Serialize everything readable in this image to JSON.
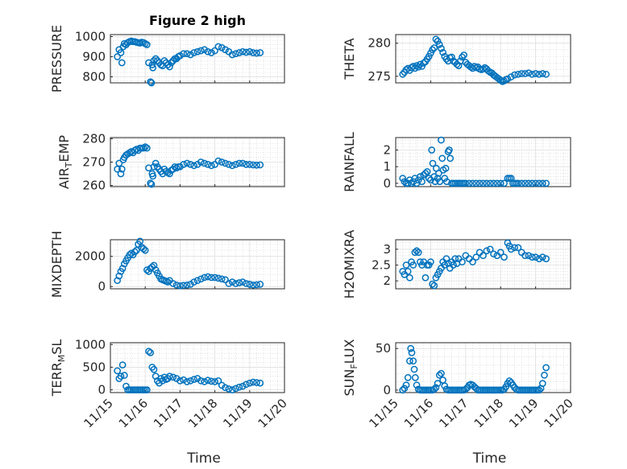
{
  "figure": {
    "background": "#ffffff",
    "marker_color": "#0072bd"
  },
  "chart_data": [
    {
      "type": "scatter",
      "title": "Figure 2 high",
      "ylabel": "PRESSURE",
      "ylabel_sub": "",
      "ylim": [
        770,
        1010
      ],
      "yticks": [
        800,
        900,
        1000
      ],
      "yticklabels": [
        "800",
        "900",
        "1000"
      ],
      "xlim": [
        15.0,
        20.0
      ],
      "xticks": [
        15,
        16,
        17,
        18,
        19,
        20
      ],
      "xticklabels": [
        "11/15",
        "11/16",
        "11/17",
        "11/18",
        "11/19",
        "11/20"
      ],
      "show_xticklabels": false,
      "xlabel": "",
      "x": [
        15.2,
        15.25,
        15.3,
        15.33,
        15.37,
        15.4,
        15.45,
        15.5,
        15.55,
        15.6,
        15.65,
        15.7,
        15.75,
        15.8,
        15.85,
        15.9,
        15.95,
        16.0,
        16.05,
        16.1,
        16.15,
        16.18,
        16.2,
        16.22,
        16.25,
        16.3,
        16.35,
        16.4,
        16.45,
        16.5,
        16.55,
        16.6,
        16.65,
        16.7,
        16.75,
        16.8,
        16.85,
        16.9,
        16.95,
        17.0,
        17.1,
        17.2,
        17.3,
        17.4,
        17.5,
        17.6,
        17.7,
        17.8,
        17.9,
        18.0,
        18.1,
        18.2,
        18.3,
        18.4,
        18.5,
        18.6,
        18.7,
        18.8,
        18.9,
        19.0,
        19.1,
        19.2,
        19.3
      ],
      "y": [
        900,
        935,
        920,
        870,
        950,
        965,
        960,
        970,
        975,
        978,
        975,
        975,
        972,
        970,
        968,
        972,
        970,
        965,
        960,
        870,
        775,
        770,
        860,
        845,
        880,
        890,
        880,
        870,
        860,
        855,
        880,
        870,
        860,
        850,
        870,
        880,
        890,
        890,
        900,
        905,
        915,
        915,
        910,
        920,
        925,
        930,
        935,
        925,
        920,
        930,
        950,
        945,
        935,
        925,
        910,
        915,
        920,
        925,
        922,
        925,
        920,
        918,
        920
      ]
    },
    {
      "type": "scatter",
      "title": "",
      "ylabel": "THETA",
      "ylabel_sub": "",
      "ylim": [
        274,
        281.3
      ],
      "yticks": [
        275,
        280
      ],
      "yticklabels": [
        "275",
        "280"
      ],
      "xlim": [
        15.0,
        20.0
      ],
      "xticks": [
        15,
        16,
        17,
        18,
        19,
        20
      ],
      "xticklabels": [
        "11/15",
        "11/16",
        "11/17",
        "11/18",
        "11/19",
        "11/20"
      ],
      "show_xticklabels": false,
      "xlabel": "",
      "x": [
        15.2,
        15.25,
        15.3,
        15.35,
        15.4,
        15.45,
        15.5,
        15.55,
        15.6,
        15.65,
        15.7,
        15.75,
        15.8,
        15.85,
        15.9,
        15.95,
        16.0,
        16.05,
        16.1,
        16.15,
        16.2,
        16.25,
        16.3,
        16.35,
        16.4,
        16.45,
        16.5,
        16.55,
        16.6,
        16.65,
        16.7,
        16.75,
        16.8,
        16.85,
        16.9,
        16.95,
        17.0,
        17.05,
        17.1,
        17.15,
        17.2,
        17.25,
        17.3,
        17.35,
        17.4,
        17.45,
        17.5,
        17.55,
        17.6,
        17.65,
        17.7,
        17.75,
        17.8,
        17.85,
        17.9,
        17.95,
        18.0,
        18.05,
        18.1,
        18.15,
        18.2,
        18.3,
        18.4,
        18.5,
        18.6,
        18.7,
        18.8,
        18.9,
        19.0,
        19.1,
        19.2,
        19.3
      ],
      "y": [
        275.3,
        275.6,
        276.0,
        276.2,
        275.9,
        276.3,
        276.5,
        276.2,
        276.6,
        276.4,
        276.8,
        276.5,
        277.0,
        277.2,
        277.6,
        278.0,
        278.5,
        279.0,
        279.3,
        280.6,
        280.3,
        279.8,
        279.2,
        278.6,
        278.0,
        277.6,
        277.3,
        277.8,
        277.9,
        277.3,
        277.1,
        276.8,
        276.6,
        277.3,
        277.9,
        278.2,
        277.1,
        276.8,
        276.6,
        276.4,
        276.2,
        276.5,
        276.3,
        276.4,
        276.1,
        276.0,
        276.1,
        276.3,
        276.1,
        275.8,
        275.6,
        275.5,
        275.2,
        275.0,
        274.8,
        274.6,
        274.4,
        274.2,
        274.3,
        274.5,
        274.6,
        274.9,
        275.2,
        275.3,
        275.4,
        275.4,
        275.5,
        275.3,
        275.4,
        275.3,
        275.4,
        275.3
      ]
    },
    {
      "type": "scatter",
      "title": "",
      "ylabel": "AIR",
      "ylabel_sub": "T",
      "ylabel_rest": "EMP",
      "ylim": [
        259.5,
        280.5
      ],
      "yticks": [
        260,
        270,
        280
      ],
      "yticklabels": [
        "260",
        "270",
        "280"
      ],
      "xlim": [
        15.0,
        20.0
      ],
      "xticks": [
        15,
        16,
        17,
        18,
        19,
        20
      ],
      "xticklabels": [
        "11/15",
        "11/16",
        "11/17",
        "11/18",
        "11/19",
        "11/20"
      ],
      "show_xticklabels": false,
      "xlabel": "",
      "x": [
        15.2,
        15.25,
        15.3,
        15.33,
        15.37,
        15.4,
        15.45,
        15.5,
        15.55,
        15.6,
        15.65,
        15.7,
        15.75,
        15.8,
        15.85,
        15.9,
        15.95,
        16.0,
        16.05,
        16.1,
        16.15,
        16.18,
        16.2,
        16.22,
        16.25,
        16.3,
        16.35,
        16.4,
        16.45,
        16.5,
        16.55,
        16.6,
        16.65,
        16.7,
        16.75,
        16.8,
        16.85,
        16.9,
        16.95,
        17.0,
        17.1,
        17.2,
        17.3,
        17.4,
        17.5,
        17.6,
        17.7,
        17.8,
        17.9,
        18.0,
        18.1,
        18.2,
        18.3,
        18.4,
        18.5,
        18.6,
        18.7,
        18.8,
        18.9,
        19.0,
        19.1,
        19.2,
        19.3
      ],
      "y": [
        267,
        269.5,
        265,
        267,
        271,
        272,
        273,
        273.5,
        274,
        274.5,
        274,
        275,
        275.5,
        275,
        276,
        276,
        276,
        276.5,
        276,
        267.5,
        261,
        260.5,
        265,
        264,
        268,
        269.5,
        268,
        267,
        266,
        265,
        267,
        266,
        265.5,
        265,
        266.5,
        267,
        268,
        267.5,
        268,
        268,
        269,
        269.5,
        269,
        268.5,
        269,
        270,
        269.5,
        269,
        268.5,
        269,
        270.5,
        270,
        269.5,
        269,
        268.5,
        269,
        269.5,
        269.5,
        269,
        269,
        268.8,
        268.7,
        268.8
      ]
    },
    {
      "type": "scatter",
      "title": "",
      "ylabel": "RAINFALL",
      "ylabel_sub": "",
      "ylim": [
        -0.2,
        2.75
      ],
      "yticks": [
        0,
        1,
        2
      ],
      "yticklabels": [
        "0",
        "1",
        "2"
      ],
      "xlim": [
        15.0,
        20.0
      ],
      "xticks": [
        15,
        16,
        17,
        18,
        19,
        20
      ],
      "xticklabels": [
        "11/15",
        "11/16",
        "11/17",
        "11/18",
        "11/19",
        "11/20"
      ],
      "show_xticklabels": false,
      "xlabel": "",
      "x": [
        15.2,
        15.25,
        15.3,
        15.35,
        15.4,
        15.45,
        15.5,
        15.55,
        15.6,
        15.65,
        15.7,
        15.75,
        15.8,
        15.85,
        15.9,
        15.95,
        16.0,
        16.03,
        16.06,
        16.1,
        16.13,
        16.16,
        16.2,
        16.23,
        16.26,
        16.3,
        16.33,
        16.36,
        16.4,
        16.43,
        16.46,
        16.5,
        16.53,
        16.56,
        16.6,
        16.65,
        16.7,
        16.75,
        16.8,
        16.85,
        16.9,
        16.95,
        17.0,
        17.1,
        17.2,
        17.3,
        17.4,
        17.5,
        17.6,
        17.7,
        17.8,
        17.9,
        18.0,
        18.1,
        18.2,
        18.25,
        18.3,
        18.35,
        18.4,
        18.45,
        18.5,
        18.6,
        18.7,
        18.8,
        18.9,
        19.0,
        19.1,
        19.2,
        19.3
      ],
      "y": [
        0.3,
        0.1,
        0,
        0,
        0.2,
        0,
        0.1,
        0.3,
        0,
        0.2,
        0.4,
        0.1,
        0.5,
        0.6,
        0.7,
        0.3,
        0.2,
        2.0,
        1.2,
        0.4,
        0.1,
        0.9,
        0.3,
        0.6,
        0.1,
        2.6,
        1.5,
        0.8,
        0.3,
        0.9,
        0.1,
        1.9,
        2.0,
        1.5,
        0,
        0,
        0,
        0,
        0,
        0,
        0,
        0,
        0,
        0,
        0,
        0,
        0,
        0,
        0,
        0,
        0,
        0,
        0,
        0,
        0.3,
        0.3,
        0.3,
        0,
        0,
        0,
        0,
        0,
        0,
        0,
        0,
        0,
        0,
        0,
        0
      ]
    },
    {
      "type": "scatter",
      "title": "",
      "ylabel": "MIXDEPTH",
      "ylabel_sub": "",
      "ylim": [
        -150,
        3100
      ],
      "yticks": [
        0,
        2000
      ],
      "yticklabels": [
        "0",
        "2000"
      ],
      "xlim": [
        15.0,
        20.0
      ],
      "xticks": [
        15,
        16,
        17,
        18,
        19,
        20
      ],
      "xticklabels": [
        "11/15",
        "11/16",
        "11/17",
        "11/18",
        "11/19",
        "11/20"
      ],
      "show_xticklabels": false,
      "xlabel": "",
      "x": [
        15.2,
        15.25,
        15.3,
        15.35,
        15.4,
        15.45,
        15.5,
        15.55,
        15.6,
        15.65,
        15.7,
        15.75,
        15.8,
        15.85,
        15.9,
        15.95,
        16.0,
        16.05,
        16.1,
        16.15,
        16.2,
        16.25,
        16.3,
        16.35,
        16.4,
        16.45,
        16.5,
        16.55,
        16.6,
        16.65,
        16.7,
        16.8,
        16.9,
        17.0,
        17.1,
        17.2,
        17.3,
        17.4,
        17.5,
        17.6,
        17.7,
        17.8,
        17.9,
        18.0,
        18.1,
        18.2,
        18.3,
        18.4,
        18.5,
        18.6,
        18.7,
        18.8,
        18.9,
        19.0,
        19.1,
        19.2,
        19.3
      ],
      "y": [
        400,
        700,
        1000,
        1200,
        1500,
        1700,
        1900,
        2100,
        2200,
        2100,
        2300,
        2400,
        2800,
        3000,
        2600,
        2500,
        2400,
        1100,
        1000,
        1200,
        1300,
        1400,
        1100,
        900,
        700,
        500,
        450,
        400,
        350,
        300,
        400,
        200,
        100,
        50,
        80,
        100,
        150,
        300,
        400,
        500,
        600,
        650,
        600,
        600,
        550,
        500,
        450,
        200,
        300,
        200,
        250,
        300,
        200,
        150,
        100,
        120,
        150
      ]
    },
    {
      "type": "scatter",
      "title": "",
      "ylabel": "H2OMIXRA",
      "ylabel_sub": "",
      "ylim": [
        1.75,
        3.3
      ],
      "yticks": [
        2,
        2.5,
        3
      ],
      "yticklabels": [
        "2",
        "2.5",
        "3"
      ],
      "xlim": [
        15.0,
        20.0
      ],
      "xticks": [
        15,
        16,
        17,
        18,
        19,
        20
      ],
      "xticklabels": [
        "11/15",
        "11/16",
        "11/17",
        "11/18",
        "11/19",
        "11/20"
      ],
      "show_xticklabels": false,
      "xlabel": "",
      "x": [
        15.2,
        15.25,
        15.3,
        15.35,
        15.4,
        15.45,
        15.5,
        15.55,
        15.6,
        15.65,
        15.7,
        15.75,
        15.8,
        15.85,
        15.9,
        15.95,
        16.0,
        16.05,
        16.1,
        16.15,
        16.2,
        16.25,
        16.3,
        16.35,
        16.4,
        16.45,
        16.5,
        16.55,
        16.6,
        16.65,
        16.7,
        16.75,
        16.8,
        16.9,
        17.0,
        17.1,
        17.2,
        17.3,
        17.4,
        17.5,
        17.6,
        17.7,
        17.8,
        17.9,
        18.0,
        18.1,
        18.2,
        18.25,
        18.3,
        18.4,
        18.5,
        18.6,
        18.7,
        18.8,
        18.9,
        19.0,
        19.1,
        19.2,
        19.3
      ],
      "y": [
        2.3,
        2.2,
        2.5,
        2.3,
        2.1,
        2.6,
        2.5,
        2.9,
        2.95,
        2.9,
        2.6,
        2.5,
        2.6,
        2.1,
        2.5,
        2.5,
        2.6,
        1.9,
        1.85,
        2.1,
        2.2,
        2.3,
        2.4,
        2.6,
        2.5,
        2.7,
        2.55,
        2.4,
        2.6,
        2.5,
        2.7,
        2.55,
        2.7,
        2.6,
        2.8,
        2.7,
        2.6,
        2.75,
        2.9,
        2.8,
        2.95,
        3.0,
        2.85,
        2.8,
        2.9,
        2.75,
        3.2,
        3.1,
        3.0,
        3.05,
        3.05,
        2.9,
        2.8,
        2.8,
        2.75,
        2.75,
        2.7,
        2.75,
        2.7
      ]
    },
    {
      "type": "scatter",
      "title": "",
      "ylabel": "TERR",
      "ylabel_sub": "M",
      "ylabel_rest": "SL",
      "ylim": [
        -60,
        1040
      ],
      "yticks": [
        0,
        500,
        1000
      ],
      "yticklabels": [
        "0",
        "500",
        "1000"
      ],
      "xlim": [
        15.0,
        20.0
      ],
      "xticks": [
        15,
        16,
        17,
        18,
        19,
        20
      ],
      "xticklabels": [
        "11/15",
        "11/16",
        "11/17",
        "11/18",
        "11/19",
        "11/20"
      ],
      "show_xticklabels": true,
      "xlabel": "Time",
      "x": [
        15.2,
        15.25,
        15.3,
        15.35,
        15.4,
        15.45,
        15.5,
        15.55,
        15.6,
        15.65,
        15.7,
        15.75,
        15.8,
        15.85,
        15.9,
        15.95,
        16.0,
        16.05,
        16.1,
        16.15,
        16.2,
        16.25,
        16.3,
        16.35,
        16.4,
        16.45,
        16.5,
        16.55,
        16.6,
        16.65,
        16.7,
        16.8,
        16.9,
        17.0,
        17.1,
        17.2,
        17.3,
        17.4,
        17.5,
        17.6,
        17.7,
        17.8,
        17.9,
        18.0,
        18.1,
        18.2,
        18.3,
        18.4,
        18.5,
        18.6,
        18.7,
        18.8,
        18.9,
        19.0,
        19.1,
        19.2,
        19.3
      ],
      "y": [
        420,
        250,
        300,
        550,
        320,
        80,
        0,
        0,
        0,
        0,
        0,
        0,
        0,
        0,
        0,
        0,
        0,
        0,
        850,
        820,
        500,
        450,
        300,
        200,
        150,
        250,
        200,
        280,
        230,
        250,
        300,
        280,
        250,
        200,
        220,
        180,
        200,
        230,
        250,
        200,
        180,
        210,
        190,
        180,
        200,
        100,
        50,
        20,
        0,
        30,
        60,
        80,
        120,
        150,
        170,
        160,
        150
      ]
    },
    {
      "type": "scatter",
      "title": "",
      "ylabel": "SUN",
      "ylabel_sub": "F",
      "ylabel_rest": "LUX",
      "ylim": [
        -3,
        57
      ],
      "yticks": [
        0,
        50
      ],
      "yticklabels": [
        "0",
        "50"
      ],
      "xlim": [
        15.0,
        20.0
      ],
      "xticks": [
        15,
        16,
        17,
        18,
        19,
        20
      ],
      "xticklabels": [
        "11/15",
        "11/16",
        "11/17",
        "11/18",
        "11/19",
        "11/20"
      ],
      "show_xticklabels": true,
      "xlabel": "Time",
      "x": [
        15.2,
        15.25,
        15.3,
        15.35,
        15.4,
        15.43,
        15.46,
        15.5,
        15.53,
        15.56,
        15.6,
        15.65,
        15.7,
        15.75,
        15.8,
        15.85,
        15.9,
        15.95,
        16.0,
        16.05,
        16.1,
        16.15,
        16.2,
        16.25,
        16.3,
        16.35,
        16.4,
        16.45,
        16.5,
        16.55,
        16.6,
        16.65,
        16.7,
        16.75,
        16.8,
        16.85,
        16.9,
        16.95,
        17.0,
        17.05,
        17.1,
        17.15,
        17.2,
        17.25,
        17.3,
        17.35,
        17.4,
        17.45,
        17.5,
        17.55,
        17.6,
        17.65,
        17.7,
        17.75,
        17.8,
        17.85,
        17.9,
        17.95,
        18.0,
        18.05,
        18.1,
        18.15,
        18.2,
        18.25,
        18.3,
        18.35,
        18.4,
        18.45,
        18.5,
        18.55,
        18.6,
        18.65,
        18.7,
        18.75,
        18.8,
        18.85,
        18.9,
        18.95,
        19.0,
        19.05,
        19.1,
        19.15,
        19.2,
        19.25,
        19.3
      ],
      "y": [
        0,
        2,
        6,
        15,
        35,
        50,
        45,
        35,
        25,
        15,
        6,
        1,
        0,
        0,
        0,
        0,
        0,
        0,
        0,
        0,
        1,
        3,
        8,
        18,
        20,
        12,
        5,
        1,
        0,
        0,
        0,
        0,
        0,
        0,
        0,
        0,
        0,
        0,
        1,
        3,
        6,
        7,
        6,
        4,
        2,
        0,
        0,
        0,
        0,
        0,
        0,
        0,
        0,
        0,
        0,
        0,
        0,
        0,
        0,
        0,
        1,
        4,
        8,
        11,
        9,
        6,
        3,
        1,
        0,
        0,
        0,
        0,
        0,
        0,
        0,
        0,
        0,
        0,
        0,
        0,
        0,
        2,
        8,
        18,
        27
      ]
    }
  ]
}
